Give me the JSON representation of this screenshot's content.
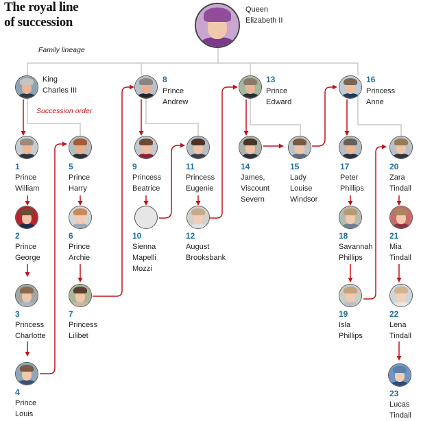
{
  "title_line1": "The royal line",
  "title_line2": "of succession",
  "annotations": {
    "family_lineage": "Family lineage",
    "succession_order": "Succession order"
  },
  "colors": {
    "succession_arrow": "#c0131a",
    "lineage_line": "#c9c9c9",
    "number": "#1f6fa0"
  },
  "queen": {
    "name": "Queen\nElizabeth II",
    "icon": "queen-portrait"
  },
  "children": [
    {
      "number": "",
      "name": "King\nCharles III"
    },
    {
      "number": "8",
      "name": "Prince\nAndrew"
    },
    {
      "number": "13",
      "name": "Prince\nEdward"
    },
    {
      "number": "16",
      "name": "Princess\nAnne"
    }
  ],
  "people": [
    {
      "number": "1",
      "name": "Prince\nWilliam"
    },
    {
      "number": "2",
      "name": "Prince\nGeorge"
    },
    {
      "number": "3",
      "name": "Princess\nCharlotte"
    },
    {
      "number": "4",
      "name": "Prince\nLouis"
    },
    {
      "number": "5",
      "name": "Prince\nHarry"
    },
    {
      "number": "6",
      "name": "Prince\nArchie"
    },
    {
      "number": "7",
      "name": "Princess\nLilibet"
    },
    {
      "number": "9",
      "name": "Princess\nBeatrice"
    },
    {
      "number": "10",
      "name": "Sienna\nMapelli\nMozzi"
    },
    {
      "number": "11",
      "name": "Princess\nEugenie"
    },
    {
      "number": "12",
      "name": "August\nBrooksbank"
    },
    {
      "number": "14",
      "name": "James,\nViscount\nSevern"
    },
    {
      "number": "15",
      "name": "Lady\nLouise\nWindsor"
    },
    {
      "number": "17",
      "name": "Peter\nPhillips"
    },
    {
      "number": "18",
      "name": "Savannah\nPhillips"
    },
    {
      "number": "19",
      "name": "Isla\nPhillips"
    },
    {
      "number": "20",
      "name": "Zara\nTindall"
    },
    {
      "number": "21",
      "name": "Mia\nTindall"
    },
    {
      "number": "22",
      "name": "Lena\nTindall"
    },
    {
      "number": "23",
      "name": "Lucas\nTindall"
    }
  ]
}
